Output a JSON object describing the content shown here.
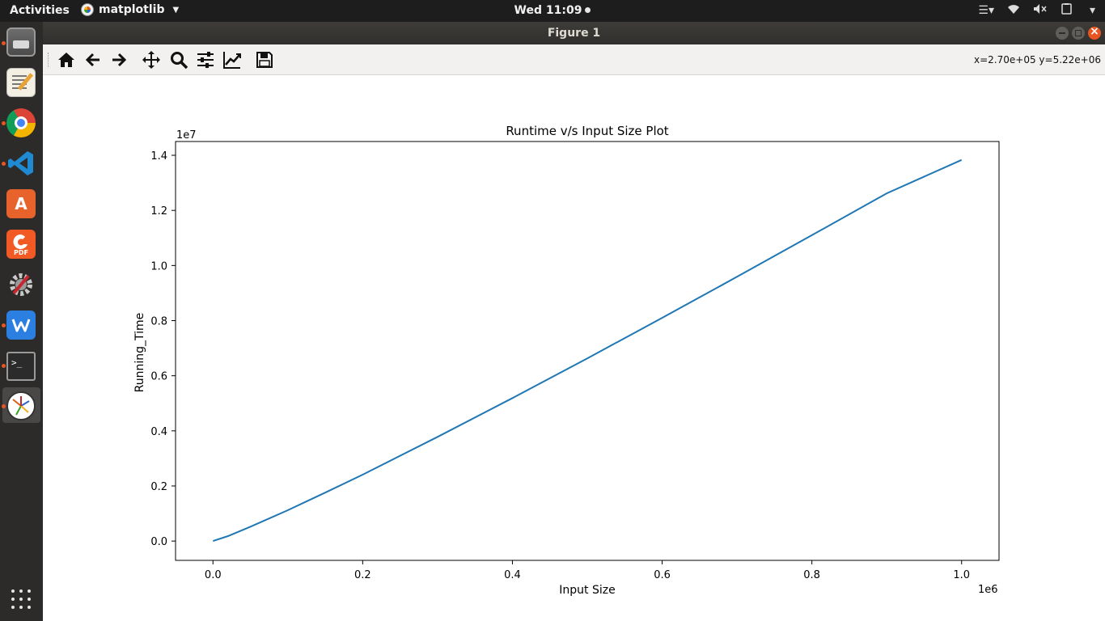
{
  "topbar": {
    "activities": "Activities",
    "app_name": "matplotlib",
    "clock": "Wed 11:09"
  },
  "dock": {
    "items": [
      {
        "name": "files",
        "running": true
      },
      {
        "name": "text-editor",
        "running": false
      },
      {
        "name": "chrome",
        "running": true
      },
      {
        "name": "vscode",
        "running": true
      },
      {
        "name": "software-center",
        "running": false
      },
      {
        "name": "foxit-pdf",
        "running": false
      },
      {
        "name": "system-settings",
        "running": false
      },
      {
        "name": "wps-office",
        "running": true
      },
      {
        "name": "terminal",
        "running": true
      },
      {
        "name": "matplotlib",
        "running": true,
        "active": true
      }
    ]
  },
  "window": {
    "title": "Figure 1"
  },
  "toolbar": {
    "buttons": [
      "home-icon",
      "back-arrow-icon",
      "forward-arrow-icon",
      "pan-move-icon",
      "zoom-magnifier-icon",
      "configure-subplots-icon",
      "edit-axis-icon",
      "save-disk-icon"
    ],
    "coords": "x=2.70e+05 y=5.22e+06"
  },
  "colors": {
    "line": "#1f77b4",
    "accent": "#e95420"
  },
  "chart_data": {
    "type": "line",
    "title": "Runtime v/s Input Size Plot",
    "xlabel": "Input Size",
    "ylabel": "Running_Time",
    "x_offset_label": "1e6",
    "y_offset_label": "1e7",
    "xlim": [
      -0.05,
      1.05
    ],
    "ylim": [
      -0.07,
      1.45
    ],
    "xticks": [
      0.0,
      0.2,
      0.4,
      0.6,
      0.8,
      1.0
    ],
    "xtick_labels": [
      "0.0",
      "0.2",
      "0.4",
      "0.6",
      "0.8",
      "1.0"
    ],
    "yticks": [
      0.0,
      0.2,
      0.4,
      0.6,
      0.8,
      1.0,
      1.2,
      1.4
    ],
    "ytick_labels": [
      "0.0",
      "0.2",
      "0.4",
      "0.6",
      "0.8",
      "1.0",
      "1.2",
      "1.4"
    ],
    "grid": false,
    "series": [
      {
        "x": [
          0.0,
          0.02,
          0.05,
          0.1,
          0.15,
          0.2,
          0.3,
          0.4,
          0.5,
          0.6,
          0.7,
          0.8,
          0.9,
          1.0
        ],
        "values": [
          0.0,
          0.018,
          0.052,
          0.112,
          0.176,
          0.241,
          0.378,
          0.519,
          0.663,
          0.81,
          0.959,
          1.11,
          1.262,
          1.383
        ]
      }
    ]
  }
}
